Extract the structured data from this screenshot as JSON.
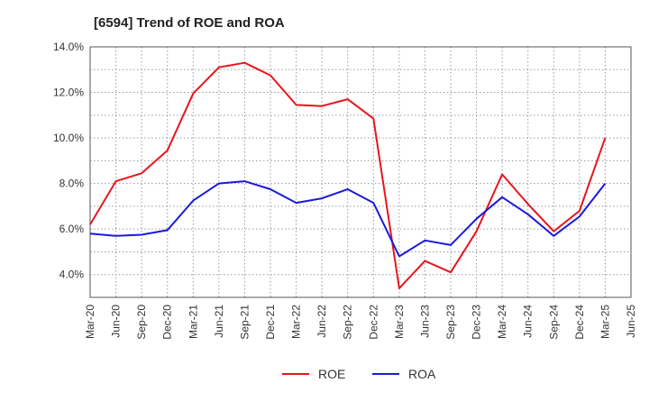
{
  "chart_data": {
    "type": "line",
    "title": "[6594]  Trend of ROE and ROA",
    "xlabel": "",
    "ylabel": "",
    "categories": [
      "Mar-20",
      "Jun-20",
      "Sep-20",
      "Dec-20",
      "Mar-21",
      "Jun-21",
      "Sep-21",
      "Dec-21",
      "Mar-22",
      "Jun-22",
      "Sep-22",
      "Dec-22",
      "Mar-23",
      "Jun-23",
      "Sep-23",
      "Dec-23",
      "Mar-24",
      "Jun-24",
      "Sep-24",
      "Dec-24",
      "Mar-25",
      "Jun-25"
    ],
    "ylim": [
      3.0,
      14.0
    ],
    "yticks": [
      4.0,
      6.0,
      8.0,
      10.0,
      12.0,
      14.0
    ],
    "ytick_labels": [
      "4.0%",
      "6.0%",
      "8.0%",
      "10.0%",
      "12.0%",
      "14.0%"
    ],
    "grid": true,
    "legend_position": "bottom-center",
    "series": [
      {
        "name": "ROE",
        "color": "#e8141c",
        "values": [
          6.2,
          8.1,
          8.45,
          9.45,
          11.95,
          13.1,
          13.3,
          12.75,
          11.45,
          11.4,
          11.7,
          10.85,
          3.4,
          4.6,
          4.1,
          5.9,
          8.4,
          7.1,
          5.9,
          6.8,
          10.0,
          null
        ]
      },
      {
        "name": "ROA",
        "color": "#1a1adb",
        "values": [
          5.8,
          5.7,
          5.75,
          5.95,
          7.25,
          8.0,
          8.1,
          7.75,
          7.15,
          7.35,
          7.75,
          7.15,
          4.8,
          5.5,
          5.3,
          6.45,
          7.4,
          6.65,
          5.7,
          6.55,
          8.0,
          null
        ]
      }
    ]
  }
}
